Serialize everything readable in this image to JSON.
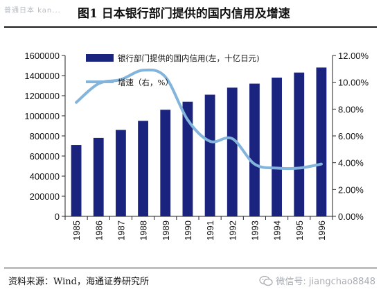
{
  "watermark": {
    "text": "普通日本 kan..."
  },
  "figure": {
    "title": "图1   日本银行部门提供的国内信用及增速"
  },
  "source": {
    "text": "资料来源：Wind，海通证券研究所"
  },
  "wechat": {
    "label": "微信号: jiangchao8848",
    "icon": "wechat-icon"
  },
  "colors": {
    "bar": "#1a237e",
    "line": "#82b4dc",
    "axis": "#222222",
    "text": "#111111"
  },
  "chart_data": {
    "type": "bar",
    "categories": [
      "1985",
      "1986",
      "1987",
      "1988",
      "1989",
      "1990",
      "1991",
      "1992",
      "1993",
      "1994",
      "1995",
      "1996"
    ],
    "series": [
      {
        "name": "银行部门提供的国内信用(左，十亿日元)",
        "type": "bar",
        "axis": "left",
        "values": [
          710000,
          780000,
          860000,
          950000,
          1060000,
          1140000,
          1210000,
          1280000,
          1320000,
          1380000,
          1430000,
          1480000
        ]
      },
      {
        "name": "增速（右，%）",
        "type": "line",
        "axis": "right",
        "values": [
          8.5,
          9.9,
          10.2,
          10.9,
          10.4,
          7.2,
          5.6,
          5.8,
          3.9,
          3.6,
          3.6,
          3.9
        ]
      }
    ],
    "y_left": {
      "min": 0,
      "max": 1600000,
      "ticks": [
        "0",
        "200000",
        "400000",
        "600000",
        "800000",
        "1000000",
        "1200000",
        "1400000",
        "1600000"
      ]
    },
    "y_right": {
      "min": 0,
      "max": 12,
      "ticks": [
        "0.00%",
        "2.00%",
        "4.00%",
        "6.00%",
        "8.00%",
        "10.00%",
        "12.00%"
      ]
    },
    "grid": false,
    "legend_position": "top-left"
  }
}
